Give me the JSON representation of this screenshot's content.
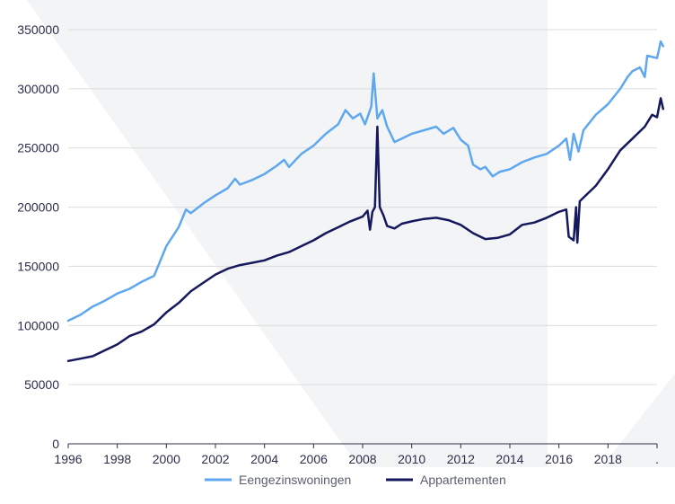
{
  "chart_data": {
    "type": "line",
    "title": "",
    "xlabel": "",
    "ylabel": "",
    "xlim": [
      1996,
      2020
    ],
    "ylim": [
      0,
      350000
    ],
    "grid": true,
    "legend_position": "bottom-center",
    "x_ticks": [
      {
        "value": 1996,
        "label": "1996"
      },
      {
        "value": 1998,
        "label": "1998"
      },
      {
        "value": 2000,
        "label": "2000"
      },
      {
        "value": 2002,
        "label": "2002"
      },
      {
        "value": 2004,
        "label": "2004"
      },
      {
        "value": 2006,
        "label": "2006"
      },
      {
        "value": 2008,
        "label": "2008"
      },
      {
        "value": 2010,
        "label": "2010"
      },
      {
        "value": 2012,
        "label": "2012"
      },
      {
        "value": 2014,
        "label": "2014"
      },
      {
        "value": 2016,
        "label": "2016"
      },
      {
        "value": 2018,
        "label": "2018"
      },
      {
        "value": 2020,
        "label": "."
      }
    ],
    "y_ticks": [
      {
        "value": 0,
        "label": "0"
      },
      {
        "value": 50000,
        "label": "50000"
      },
      {
        "value": 100000,
        "label": "100000"
      },
      {
        "value": 150000,
        "label": "150000"
      },
      {
        "value": 200000,
        "label": "200000"
      },
      {
        "value": 250000,
        "label": "250000"
      },
      {
        "value": 300000,
        "label": "300000"
      },
      {
        "value": 350000,
        "label": "350000"
      }
    ],
    "series": [
      {
        "name": "Eengezinswoningen",
        "color": "#5fa7ef",
        "points": [
          [
            1996.0,
            104000
          ],
          [
            1996.5,
            109000
          ],
          [
            1997.0,
            116000
          ],
          [
            1997.5,
            121000
          ],
          [
            1998.0,
            127000
          ],
          [
            1998.5,
            131000
          ],
          [
            1999.0,
            137000
          ],
          [
            1999.5,
            142000
          ],
          [
            2000.0,
            167000
          ],
          [
            2000.5,
            183000
          ],
          [
            2000.8,
            198000
          ],
          [
            2001.0,
            195000
          ],
          [
            2001.5,
            203000
          ],
          [
            2002.0,
            210000
          ],
          [
            2002.5,
            216000
          ],
          [
            2002.8,
            224000
          ],
          [
            2003.0,
            219000
          ],
          [
            2003.5,
            223000
          ],
          [
            2004.0,
            228000
          ],
          [
            2004.5,
            235000
          ],
          [
            2004.8,
            240000
          ],
          [
            2005.0,
            234000
          ],
          [
            2005.5,
            245000
          ],
          [
            2006.0,
            252000
          ],
          [
            2006.5,
            262000
          ],
          [
            2007.0,
            270000
          ],
          [
            2007.3,
            282000
          ],
          [
            2007.6,
            275000
          ],
          [
            2007.9,
            279000
          ],
          [
            2008.1,
            270000
          ],
          [
            2008.35,
            285000
          ],
          [
            2008.45,
            313000
          ],
          [
            2008.6,
            275000
          ],
          [
            2008.8,
            282000
          ],
          [
            2009.0,
            268000
          ],
          [
            2009.3,
            255000
          ],
          [
            2009.6,
            258000
          ],
          [
            2010.0,
            262000
          ],
          [
            2010.5,
            265000
          ],
          [
            2011.0,
            268000
          ],
          [
            2011.3,
            262000
          ],
          [
            2011.7,
            267000
          ],
          [
            2012.0,
            257000
          ],
          [
            2012.3,
            252000
          ],
          [
            2012.5,
            236000
          ],
          [
            2012.8,
            232000
          ],
          [
            2013.0,
            234000
          ],
          [
            2013.3,
            226000
          ],
          [
            2013.6,
            230000
          ],
          [
            2014.0,
            232000
          ],
          [
            2014.5,
            238000
          ],
          [
            2015.0,
            242000
          ],
          [
            2015.5,
            245000
          ],
          [
            2016.0,
            252000
          ],
          [
            2016.3,
            258000
          ],
          [
            2016.45,
            240000
          ],
          [
            2016.6,
            262000
          ],
          [
            2016.8,
            247000
          ],
          [
            2017.0,
            265000
          ],
          [
            2017.5,
            278000
          ],
          [
            2018.0,
            287000
          ],
          [
            2018.5,
            300000
          ],
          [
            2018.8,
            310000
          ],
          [
            2019.0,
            315000
          ],
          [
            2019.3,
            318000
          ],
          [
            2019.5,
            310000
          ],
          [
            2019.6,
            328000
          ],
          [
            2020.0,
            326000
          ],
          [
            2020.15,
            340000
          ],
          [
            2020.25,
            336000
          ]
        ]
      },
      {
        "name": "Appartementen",
        "color": "#15185c",
        "points": [
          [
            1996.0,
            70000
          ],
          [
            1996.5,
            72000
          ],
          [
            1997.0,
            74000
          ],
          [
            1997.5,
            79000
          ],
          [
            1998.0,
            84000
          ],
          [
            1998.5,
            91000
          ],
          [
            1999.0,
            95000
          ],
          [
            1999.5,
            101000
          ],
          [
            2000.0,
            111000
          ],
          [
            2000.5,
            119000
          ],
          [
            2001.0,
            129000
          ],
          [
            2001.5,
            136000
          ],
          [
            2002.0,
            143000
          ],
          [
            2002.5,
            148000
          ],
          [
            2003.0,
            151000
          ],
          [
            2003.5,
            153000
          ],
          [
            2004.0,
            155000
          ],
          [
            2004.5,
            159000
          ],
          [
            2005.0,
            162000
          ],
          [
            2005.5,
            167000
          ],
          [
            2006.0,
            172000
          ],
          [
            2006.5,
            178000
          ],
          [
            2007.0,
            183000
          ],
          [
            2007.5,
            188000
          ],
          [
            2008.0,
            192000
          ],
          [
            2008.2,
            197000
          ],
          [
            2008.3,
            181000
          ],
          [
            2008.4,
            196000
          ],
          [
            2008.5,
            200000
          ],
          [
            2008.6,
            268000
          ],
          [
            2008.7,
            200000
          ],
          [
            2008.85,
            193000
          ],
          [
            2009.0,
            184000
          ],
          [
            2009.3,
            182000
          ],
          [
            2009.6,
            186000
          ],
          [
            2010.0,
            188000
          ],
          [
            2010.5,
            190000
          ],
          [
            2011.0,
            191000
          ],
          [
            2011.5,
            189000
          ],
          [
            2012.0,
            185000
          ],
          [
            2012.5,
            178000
          ],
          [
            2013.0,
            173000
          ],
          [
            2013.5,
            174000
          ],
          [
            2014.0,
            177000
          ],
          [
            2014.5,
            185000
          ],
          [
            2015.0,
            187000
          ],
          [
            2015.5,
            191000
          ],
          [
            2016.0,
            196000
          ],
          [
            2016.3,
            198000
          ],
          [
            2016.4,
            175000
          ],
          [
            2016.6,
            172000
          ],
          [
            2016.7,
            200000
          ],
          [
            2016.75,
            170000
          ],
          [
            2016.85,
            205000
          ],
          [
            2017.0,
            208000
          ],
          [
            2017.5,
            218000
          ],
          [
            2018.0,
            232000
          ],
          [
            2018.5,
            248000
          ],
          [
            2019.0,
            258000
          ],
          [
            2019.5,
            268000
          ],
          [
            2019.8,
            278000
          ],
          [
            2020.0,
            276000
          ],
          [
            2020.15,
            292000
          ],
          [
            2020.25,
            283000
          ]
        ]
      }
    ]
  }
}
